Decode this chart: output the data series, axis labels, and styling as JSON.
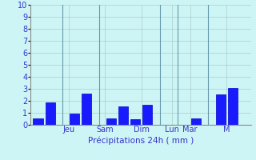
{
  "bar_values": [
    0.55,
    1.85,
    0.95,
    2.6,
    0.55,
    1.55,
    0.45,
    1.7,
    0.55,
    2.55,
    3.1
  ],
  "bar_positions": [
    0,
    1,
    3,
    4,
    6,
    7,
    8,
    9,
    13,
    15,
    16
  ],
  "day_labels": [
    "Jeu",
    "Sam",
    "Dim",
    "Lun",
    "Mar",
    "M"
  ],
  "day_tick_positions": [
    2.5,
    5.5,
    8.5,
    11.0,
    12.5,
    15.5
  ],
  "day_line_positions": [
    2.0,
    5.0,
    10.0,
    11.5,
    14.0
  ],
  "xlabel": "Précipitations 24h ( mm )",
  "ylim": [
    0,
    10
  ],
  "yticks": [
    0,
    1,
    2,
    3,
    4,
    5,
    6,
    7,
    8,
    9,
    10
  ],
  "bar_color": "#1a1aff",
  "bar_edge_color": "#0000cc",
  "background_color": "#cef5f5",
  "grid_color": "#aacccc",
  "text_color": "#3333cc",
  "xlabel_color": "#3333cc",
  "tick_color": "#3333cc",
  "bar_width": 0.8,
  "xlim": [
    -0.6,
    17.5
  ]
}
